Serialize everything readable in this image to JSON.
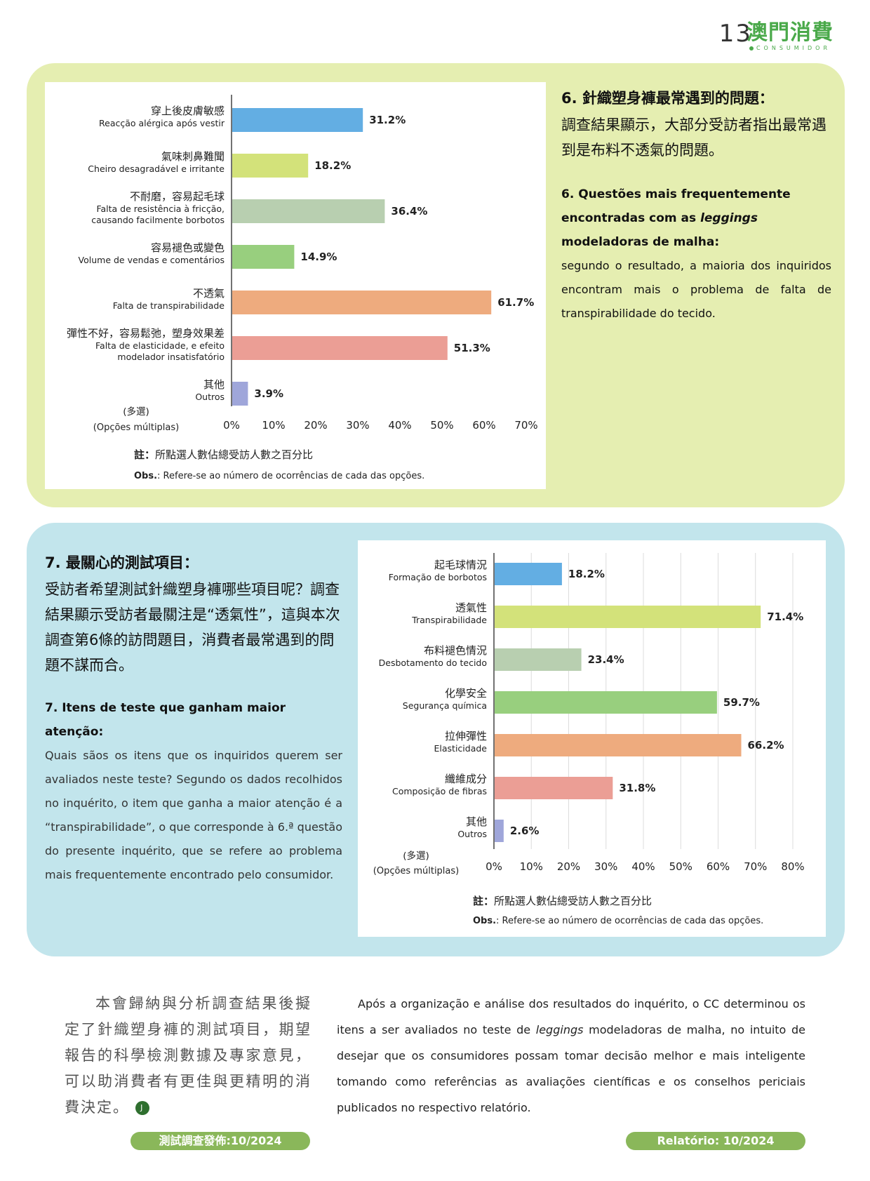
{
  "header": {
    "page_number": "13",
    "brand_zh": "澳門消費",
    "brand_pt": "CONSUMIDOR"
  },
  "q6": {
    "title_zh": "6. 針織塑身褲最常遇到的問題：",
    "body_zh": "調查結果顯示，大部分受訪者指出最常遇到是布料不透氣的問題。",
    "title_pt_pre": "6.  Questões mais frequentemente encontradas com as ",
    "title_pt_em": "leggings",
    "title_pt_post": " modeladoras de malha:",
    "body_pt": "segundo o resultado, a maioria dos inquiridos encontram mais o problema de falta de transpirabilidade do tecido."
  },
  "q7": {
    "title_zh": "7. 最關心的測試項目：",
    "body_zh": "受訪者希望測試針織塑身褲哪些項目呢？調查結果顯示受訪者最關注是“透氣性”，這與本次調查第6條的訪問題目，消費者最常遇到的問題不謀而合。",
    "title_pt": "7.  Itens de teste que ganham maior atenção:",
    "body_pt": "Quais sãos os itens que os inquiridos querem ser avaliados neste teste? Segundo os dados recolhidos no inquérito, o item que ganha a maior atenção é a “transpirabilidade”, o que corresponde à 6.ª questão do presente inquérito, que se refere ao problema mais frequentemente encontrado pelo consumidor."
  },
  "notes": {
    "note_label": "註：",
    "note_text": "所點選人數佔總受訪人數之百分比",
    "obs_label": "Obs.",
    "obs_text": ": Refere-se ao número de ocorrências de cada das opções."
  },
  "summary": {
    "zh": "本會歸納與分析調查結果後擬定了針織塑身褲的測試項目，期望報告的科學檢測數據及專家意見，可以助消費者有更佳與更精明的消費決定。",
    "end_mark": "J",
    "pt_pre": "Após a organização e análise dos resultados do inquérito, o CC determinou os itens a ser avaliados no teste de ",
    "pt_em": "leggings",
    "pt_post": " modeladoras de malha, no intuito de desejar que os consumidores possam tomar decisão melhor e mais inteligente tomando como referências as avaliações científicas e os conselhos periciais publicados no respectivo relatório."
  },
  "footer": {
    "date_zh": "測試調查發佈:10/2024",
    "date_pt": "Relatório: 10/2024"
  },
  "chart_data": [
    {
      "type": "bar",
      "orientation": "horizontal",
      "multi_label_zh": "(多選)",
      "multi_label_pt": "(Opções múltiplas)",
      "xlim": [
        0,
        70
      ],
      "ticks": [
        "0%",
        "10%",
        "20%",
        "30%",
        "40%",
        "50%",
        "60%",
        "70%"
      ],
      "categories": [
        {
          "zh": "穿上後皮膚敏感",
          "pt": [
            "Reacção alérgica após vestir"
          ],
          "value": 31.2,
          "label": "31.2%",
          "color": "#63aee3"
        },
        {
          "zh": "氣味刺鼻難聞",
          "pt": [
            "Cheiro desagradável e irritante"
          ],
          "value": 18.2,
          "label": "18.2%",
          "color": "#d3e27a"
        },
        {
          "zh": "不耐磨，容易起毛球",
          "pt": [
            "Falta de resistência à fricção,",
            "causando facilmente borbotos"
          ],
          "value": 36.4,
          "label": "36.4%",
          "color": "#b8cfb0"
        },
        {
          "zh": "容易褪色或變色",
          "pt": [
            "Volume de vendas e comentários"
          ],
          "value": 14.9,
          "label": "14.9%",
          "color": "#98cf7e"
        },
        {
          "zh": "不透氣",
          "pt": [
            "Falta de transpirabilidade"
          ],
          "value": 61.7,
          "label": "61.7%",
          "color": "#eeab7e"
        },
        {
          "zh": "彈性不好，容易鬆弛，塑身效果差",
          "pt": [
            "Falta de elasticidade, e efeito",
            "modelador insatisfatório"
          ],
          "value": 51.3,
          "label": "51.3%",
          "color": "#eb9e95"
        },
        {
          "zh": "其他",
          "pt": [
            "Outros"
          ],
          "value": 3.9,
          "label": "3.9%",
          "color": "#9fa6da"
        }
      ]
    },
    {
      "type": "bar",
      "orientation": "horizontal",
      "multi_label_zh": "(多選)",
      "multi_label_pt": "(Opções múltiplas)",
      "xlim": [
        0,
        80
      ],
      "ticks": [
        "0%",
        "10%",
        "20%",
        "30%",
        "40%",
        "50%",
        "60%",
        "70%",
        "80%"
      ],
      "categories": [
        {
          "zh": "起毛球情況",
          "pt": [
            "Formação de borbotos"
          ],
          "value": 18.2,
          "label": "18.2%",
          "color": "#63aee3"
        },
        {
          "zh": "透氣性",
          "pt": [
            "Transpirabilidade"
          ],
          "value": 71.4,
          "label": "71.4%",
          "color": "#d3e27a"
        },
        {
          "zh": "布料褪色情況",
          "pt": [
            "Desbotamento do tecido"
          ],
          "value": 23.4,
          "label": "23.4%",
          "color": "#b8cfb0"
        },
        {
          "zh": "化學安全",
          "pt": [
            "Segurança química"
          ],
          "value": 59.7,
          "label": "59.7%",
          "color": "#98cf7e"
        },
        {
          "zh": "拉伸彈性",
          "pt": [
            "Elasticidade"
          ],
          "value": 66.2,
          "label": "66.2%",
          "color": "#eeab7e"
        },
        {
          "zh": "纖維成分",
          "pt": [
            "Composição de fibras"
          ],
          "value": 31.8,
          "label": "31.8%",
          "color": "#eb9e95"
        },
        {
          "zh": "其他",
          "pt": [
            "Outros"
          ],
          "value": 2.6,
          "label": "2.6%",
          "color": "#9fa6da"
        }
      ]
    }
  ]
}
